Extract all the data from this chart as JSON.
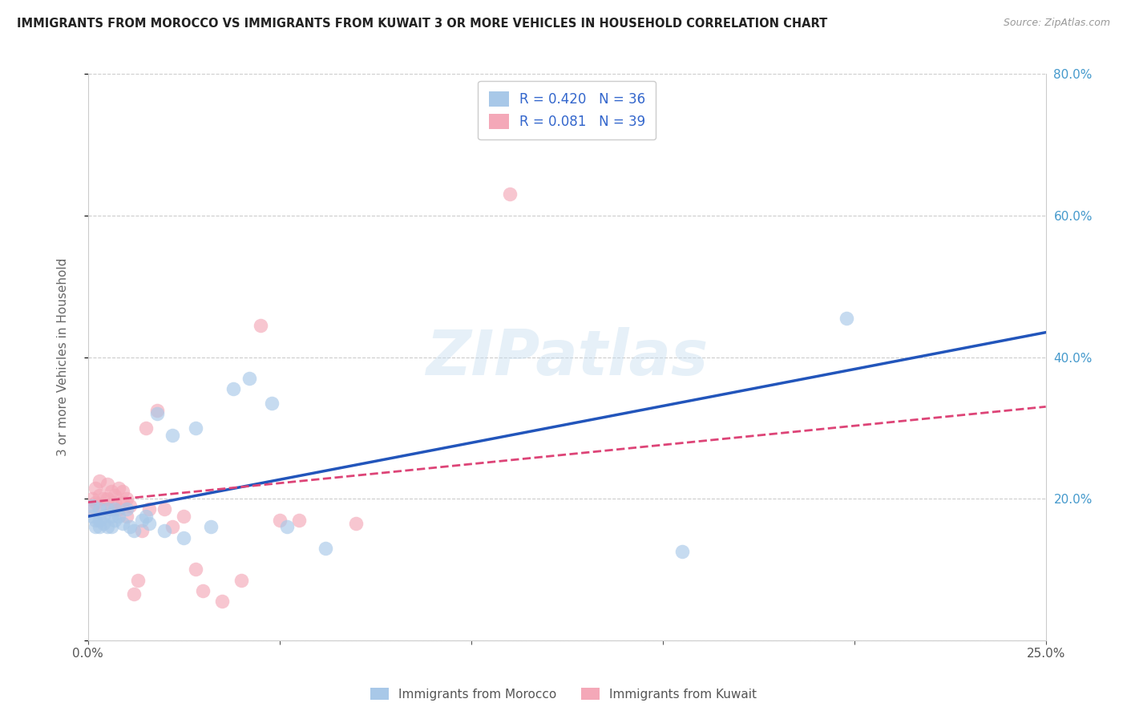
{
  "title": "IMMIGRANTS FROM MOROCCO VS IMMIGRANTS FROM KUWAIT 3 OR MORE VEHICLES IN HOUSEHOLD CORRELATION CHART",
  "source": "Source: ZipAtlas.com",
  "ylabel": "3 or more Vehicles in Household",
  "xlim": [
    0.0,
    0.25
  ],
  "ylim": [
    0.0,
    0.8
  ],
  "xtick_vals": [
    0.0,
    0.05,
    0.1,
    0.15,
    0.2,
    0.25
  ],
  "ytick_vals": [
    0.0,
    0.2,
    0.4,
    0.6,
    0.8
  ],
  "xtick_labels": [
    "0.0%",
    "",
    "",
    "",
    "",
    "25.0%"
  ],
  "ytick_labels_right": [
    "",
    "20.0%",
    "40.0%",
    "60.0%",
    "80.0%"
  ],
  "morocco_R": 0.42,
  "morocco_N": 36,
  "kuwait_R": 0.081,
  "kuwait_N": 39,
  "morocco_color": "#a8c8e8",
  "kuwait_color": "#f4a8b8",
  "morocco_line_color": "#2255bb",
  "kuwait_line_color": "#dd4477",
  "legend_label_morocco": "Immigrants from Morocco",
  "legend_label_kuwait": "Immigrants from Kuwait",
  "watermark": "ZIPatlas",
  "morocco_x": [
    0.001,
    0.001,
    0.002,
    0.002,
    0.003,
    0.003,
    0.003,
    0.004,
    0.004,
    0.005,
    0.005,
    0.006,
    0.006,
    0.007,
    0.007,
    0.008,
    0.009,
    0.01,
    0.011,
    0.012,
    0.014,
    0.015,
    0.016,
    0.018,
    0.02,
    0.022,
    0.025,
    0.028,
    0.032,
    0.038,
    0.042,
    0.048,
    0.052,
    0.062,
    0.155,
    0.198
  ],
  "morocco_y": [
    0.19,
    0.175,
    0.17,
    0.16,
    0.185,
    0.17,
    0.16,
    0.165,
    0.175,
    0.185,
    0.16,
    0.175,
    0.16,
    0.17,
    0.185,
    0.175,
    0.165,
    0.185,
    0.16,
    0.155,
    0.17,
    0.175,
    0.165,
    0.32,
    0.155,
    0.29,
    0.145,
    0.3,
    0.16,
    0.355,
    0.37,
    0.335,
    0.16,
    0.13,
    0.125,
    0.455
  ],
  "kuwait_x": [
    0.001,
    0.001,
    0.002,
    0.002,
    0.003,
    0.003,
    0.004,
    0.004,
    0.005,
    0.005,
    0.006,
    0.006,
    0.007,
    0.007,
    0.008,
    0.008,
    0.009,
    0.009,
    0.01,
    0.011,
    0.012,
    0.013,
    0.014,
    0.015,
    0.016,
    0.018,
    0.02,
    0.022,
    0.025,
    0.028,
    0.03,
    0.035,
    0.04,
    0.045,
    0.05,
    0.055,
    0.07,
    0.11,
    0.01
  ],
  "kuwait_y": [
    0.2,
    0.185,
    0.215,
    0.195,
    0.225,
    0.205,
    0.2,
    0.185,
    0.22,
    0.2,
    0.21,
    0.185,
    0.205,
    0.195,
    0.215,
    0.185,
    0.21,
    0.195,
    0.2,
    0.19,
    0.065,
    0.085,
    0.155,
    0.3,
    0.185,
    0.325,
    0.185,
    0.16,
    0.175,
    0.1,
    0.07,
    0.055,
    0.085,
    0.445,
    0.17,
    0.17,
    0.165,
    0.63,
    0.175
  ],
  "morocco_line_x": [
    0.0,
    0.25
  ],
  "morocco_line_y": [
    0.175,
    0.435
  ],
  "kuwait_line_x": [
    0.0,
    0.25
  ],
  "kuwait_line_y": [
    0.195,
    0.33
  ]
}
